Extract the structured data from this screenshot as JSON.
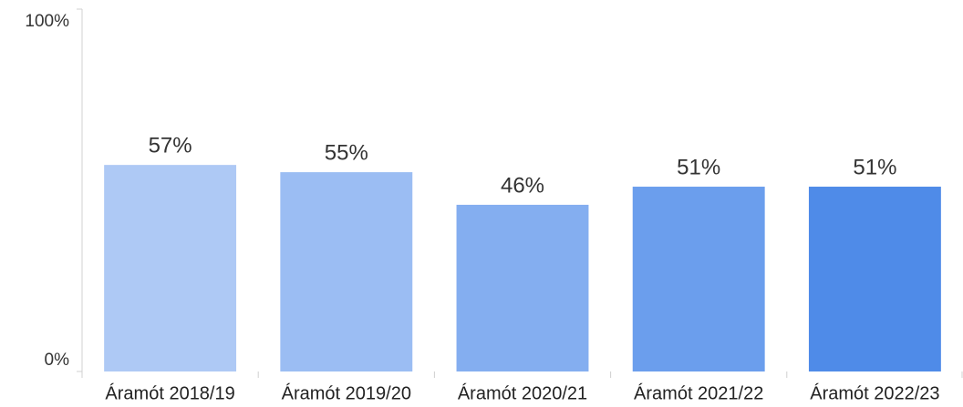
{
  "chart_data": {
    "type": "bar",
    "categories": [
      "Áramót 2018/19",
      "Áramót 2019/20",
      "Áramót 2020/21",
      "Áramót 2021/22",
      "Áramót 2022/23"
    ],
    "values": [
      57,
      55,
      46,
      51,
      51
    ],
    "value_labels": [
      "57%",
      "55%",
      "46%",
      "51%",
      "51%"
    ],
    "colors": [
      "#aec9f5",
      "#9bbdf3",
      "#84aef0",
      "#6b9eed",
      "#4f8be8"
    ],
    "ylim": [
      0,
      100
    ],
    "yticks": [
      {
        "value": 0,
        "label": "0%"
      },
      {
        "value": 100,
        "label": "100%"
      }
    ],
    "grid": false
  }
}
